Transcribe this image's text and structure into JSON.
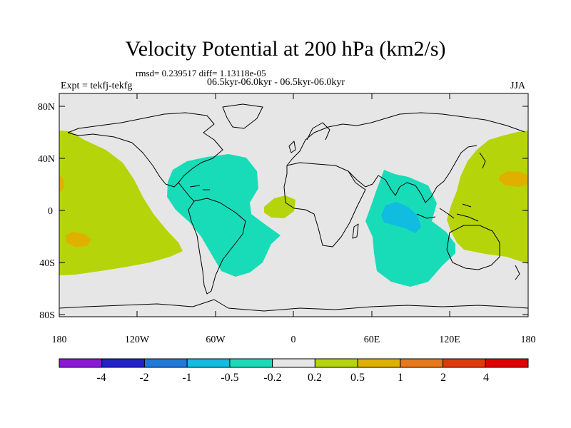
{
  "title": "Velocity Potential at 200 hPa (km2/s)",
  "stats": "rmsd= 0.239517 diff= 1.13118e-05",
  "period": "06.5kyr-06.0kyr - 06.5kyr-06.0kyr",
  "experiment": "Expt = tekfj-tekfg",
  "season": "JJA",
  "axes": {
    "lat_ticks": [
      "80N",
      "40N",
      "0",
      "40S",
      "80S"
    ],
    "lon_ticks": [
      "180",
      "120W",
      "60W",
      "0",
      "60E",
      "120E",
      "180"
    ]
  },
  "colorbar": {
    "labels": [
      "-4",
      "-2",
      "-1",
      "-0.5",
      "-0.2",
      "0.2",
      "0.5",
      "1",
      "2",
      "4"
    ],
    "colors": [
      "#8a1ad6",
      "#2222cc",
      "#1f7ad9",
      "#10bce0",
      "#18dcb8",
      "#e6e6e6",
      "#b6d40a",
      "#e0b000",
      "#e87818",
      "#e03a0a",
      "#e00000"
    ]
  },
  "colors": {
    "neutral_bg": "#e6e6e6",
    "coast": "#000000"
  }
}
